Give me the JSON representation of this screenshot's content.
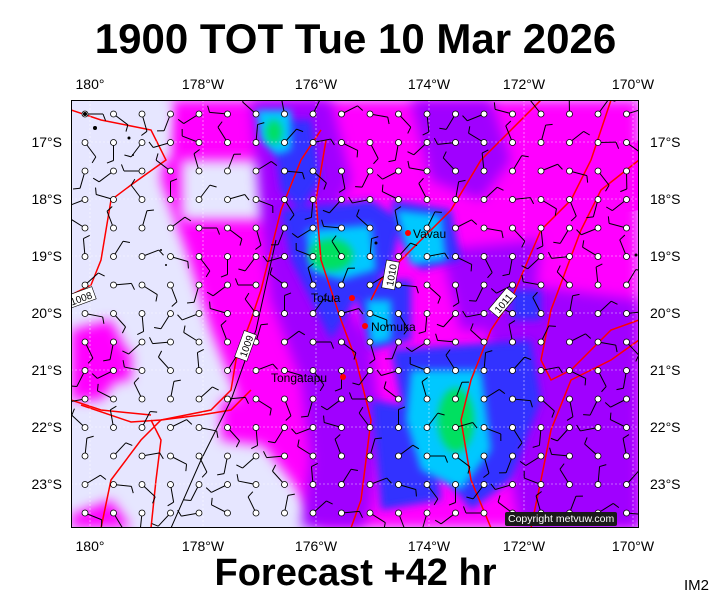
{
  "header": {
    "title": "1900 TOT Tue 10 Mar 2026"
  },
  "footer": {
    "forecast": "Forecast +42 hr",
    "code": "IM2"
  },
  "map": {
    "copyright": "Copyright metvuw.com",
    "lon_labels": [
      "180°",
      "178°W",
      "176°W",
      "174°W",
      "172°W",
      "170°W"
    ],
    "lon_values": [
      180,
      178,
      176,
      174,
      172,
      170
    ],
    "lat_labels": [
      "17°S",
      "18°S",
      "19°S",
      "20°S",
      "21°S",
      "22°S",
      "23°S"
    ],
    "lat_values": [
      -17,
      -18,
      -19,
      -20,
      -21,
      -22,
      -23
    ],
    "place_names": [
      "Vavau",
      "Tofua",
      "Nomuka",
      "Tongatapu"
    ],
    "isobar_labels": [
      "1008",
      "1009",
      "1010",
      "1011"
    ],
    "colors": {
      "background_fill": "#e6e6ff",
      "light_rain": "#ff00ff",
      "moderate_rain": "#a000ff",
      "heavy_rain": "#3030ff",
      "very_heavy_rain": "#00c8ff",
      "extreme_rain": "#00e060",
      "isobar_red": "#ff0000",
      "isobar_black": "#000000"
    }
  }
}
